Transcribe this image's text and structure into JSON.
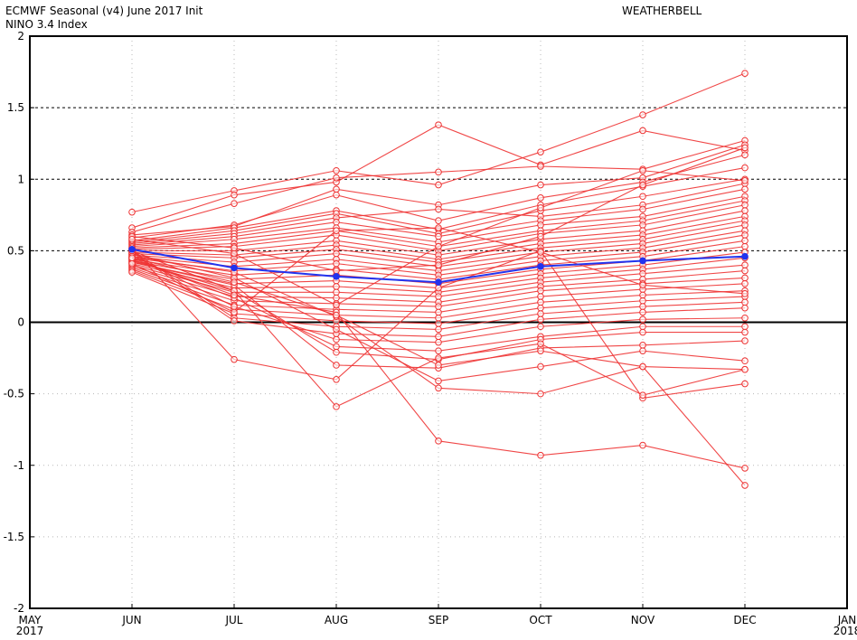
{
  "header": {
    "title_line1": "ECMWF Seasonal (v4) June 2017 Init",
    "title_line2": "NINO 3.4 Index",
    "brand": "WEATHERBELL"
  },
  "chart_data": {
    "type": "line",
    "title": "ECMWF Seasonal (v4) June 2017 Init",
    "subtitle": "NINO 3.4 Index",
    "xlabel": "",
    "ylabel": "",
    "ylim": [
      -2,
      2
    ],
    "y_ticks": [
      "2",
      "1.5",
      "1",
      "0.5",
      "0",
      "-0.5",
      "-1",
      "-1.5",
      "-2"
    ],
    "y_tick_values": [
      2,
      1.5,
      1,
      0.5,
      0,
      -0.5,
      -1,
      -1.5,
      -2
    ],
    "x_ticks": [
      {
        "label": "MAY",
        "year": "2017"
      },
      {
        "label": "JUN",
        "year": ""
      },
      {
        "label": "JUL",
        "year": ""
      },
      {
        "label": "AUG",
        "year": ""
      },
      {
        "label": "SEP",
        "year": ""
      },
      {
        "label": "OCT",
        "year": ""
      },
      {
        "label": "NOV",
        "year": ""
      },
      {
        "label": "DEC",
        "year": ""
      },
      {
        "label": "JAN",
        "year": "2018"
      }
    ],
    "categories": [
      "JUN",
      "JUL",
      "AUG",
      "SEP",
      "OCT",
      "NOV",
      "DEC"
    ],
    "grid": true,
    "dashed_reference_lines": [
      0.5,
      1.0,
      1.5
    ],
    "zero_line": 0,
    "colors": {
      "members": "#ee3333",
      "mean": "#2233ee"
    },
    "mean_series": {
      "values": [
        0.51,
        0.38,
        0.32,
        0.28,
        0.39,
        0.43,
        0.46
      ]
    },
    "series": [
      {
        "values": [
          0.77,
          0.92,
          1.06,
          0.96,
          1.19,
          1.45,
          1.74
        ]
      },
      {
        "values": [
          0.66,
          0.89,
          0.98,
          1.38,
          1.1,
          1.34,
          1.2
        ]
      },
      {
        "values": [
          0.63,
          0.83,
          1.01,
          1.05,
          1.09,
          1.07,
          1.27
        ]
      },
      {
        "values": [
          0.61,
          0.67,
          0.93,
          0.82,
          0.96,
          1.01,
          1.24
        ]
      },
      {
        "values": [
          0.59,
          0.68,
          0.89,
          0.71,
          0.87,
          0.98,
          1.17
        ]
      },
      {
        "values": [
          0.57,
          0.66,
          0.78,
          0.65,
          0.82,
          0.95,
          1.08
        ]
      },
      {
        "values": [
          0.56,
          0.64,
          0.76,
          0.62,
          0.78,
          0.88,
          1.0
        ]
      },
      {
        "values": [
          0.55,
          0.62,
          0.73,
          0.79,
          0.74,
          0.82,
          0.97
        ]
      },
      {
        "values": [
          0.54,
          0.6,
          0.7,
          0.6,
          0.71,
          0.79,
          0.93
        ]
      },
      {
        "values": [
          0.53,
          0.58,
          0.66,
          0.56,
          0.68,
          0.74,
          0.88
        ]
      },
      {
        "values": [
          0.52,
          0.55,
          0.64,
          0.53,
          0.64,
          0.71,
          0.85
        ]
      },
      {
        "values": [
          0.51,
          0.53,
          0.61,
          0.5,
          0.62,
          0.68,
          0.82
        ]
      },
      {
        "values": [
          0.5,
          0.5,
          0.57,
          0.47,
          0.58,
          0.64,
          0.78
        ]
      },
      {
        "values": [
          0.49,
          0.47,
          0.54,
          0.44,
          0.55,
          0.61,
          0.74
        ]
      },
      {
        "values": [
          0.48,
          0.45,
          0.51,
          0.42,
          0.52,
          0.58,
          0.71
        ]
      },
      {
        "values": [
          0.47,
          0.42,
          0.48,
          0.39,
          0.49,
          0.55,
          0.68
        ]
      },
      {
        "values": [
          0.46,
          0.39,
          0.44,
          0.36,
          0.46,
          0.52,
          0.64
        ]
      },
      {
        "values": [
          0.45,
          0.36,
          0.41,
          0.33,
          0.43,
          0.49,
          0.61
        ]
      },
      {
        "values": [
          0.44,
          0.33,
          0.37,
          0.3,
          0.4,
          0.46,
          0.57
        ]
      },
      {
        "values": [
          0.43,
          0.3,
          0.33,
          0.27,
          0.37,
          0.43,
          0.53
        ]
      },
      {
        "values": [
          0.42,
          0.27,
          0.29,
          0.24,
          0.34,
          0.4,
          0.49
        ]
      },
      {
        "values": [
          0.41,
          0.24,
          0.25,
          0.21,
          0.31,
          0.37,
          0.45
        ]
      },
      {
        "values": [
          0.4,
          0.21,
          0.21,
          0.18,
          0.28,
          0.34,
          0.4
        ]
      },
      {
        "values": [
          0.39,
          0.18,
          0.17,
          0.14,
          0.25,
          0.3,
          0.36
        ]
      },
      {
        "values": [
          0.38,
          0.15,
          0.13,
          0.11,
          0.22,
          0.27,
          0.31
        ]
      },
      {
        "values": [
          0.37,
          0.12,
          0.09,
          0.07,
          0.18,
          0.23,
          0.27
        ]
      },
      {
        "values": [
          0.36,
          0.09,
          0.05,
          0.03,
          0.14,
          0.19,
          0.22
        ]
      },
      {
        "values": [
          0.35,
          0.06,
          0.01,
          -0.01,
          0.1,
          0.15,
          0.18
        ]
      },
      {
        "values": [
          0.5,
          0.03,
          -0.03,
          -0.05,
          0.06,
          0.11,
          0.14
        ]
      },
      {
        "values": [
          0.49,
          0.01,
          -0.08,
          -0.1,
          0.02,
          0.07,
          0.1
        ]
      },
      {
        "values": [
          0.47,
          0.11,
          -0.12,
          -0.14,
          -0.03,
          0.02,
          0.03
        ]
      },
      {
        "values": [
          0.45,
          0.17,
          -0.17,
          -0.2,
          -0.1,
          -0.03,
          -0.03
        ]
      },
      {
        "values": [
          0.43,
          0.22,
          -0.21,
          -0.26,
          -0.12,
          -0.07,
          -0.07
        ]
      },
      {
        "values": [
          0.42,
          0.26,
          -0.3,
          -0.32,
          -0.18,
          -0.16,
          -0.13
        ]
      },
      {
        "values": [
          0.48,
          0.31,
          -0.05,
          -0.41,
          -0.31,
          -0.2,
          -0.27
        ]
      },
      {
        "values": [
          0.46,
          0.35,
          0.04,
          -0.46,
          -0.5,
          -0.31,
          -0.33
        ]
      },
      {
        "values": [
          0.52,
          -0.26,
          -0.4,
          0.24,
          0.5,
          -0.53,
          -0.43
        ]
      },
      {
        "values": [
          0.5,
          0.22,
          -0.59,
          -0.25,
          -0.15,
          -0.51,
          -0.33
        ]
      },
      {
        "values": [
          0.44,
          0.19,
          0.07,
          -0.83,
          -0.93,
          -0.86,
          -1.02
        ]
      },
      {
        "values": [
          0.45,
          0.28,
          0.05,
          -0.3,
          -0.2,
          -0.31,
          -1.14
        ]
      },
      {
        "values": [
          0.6,
          0.52,
          0.36,
          0.4,
          0.6,
          0.96,
          1.22
        ]
      },
      {
        "values": [
          0.58,
          0.48,
          0.12,
          0.53,
          0.8,
          1.06,
          0.99
        ]
      },
      {
        "values": [
          0.41,
          0.07,
          0.64,
          0.66,
          0.49,
          0.26,
          0.2
        ]
      }
    ]
  }
}
